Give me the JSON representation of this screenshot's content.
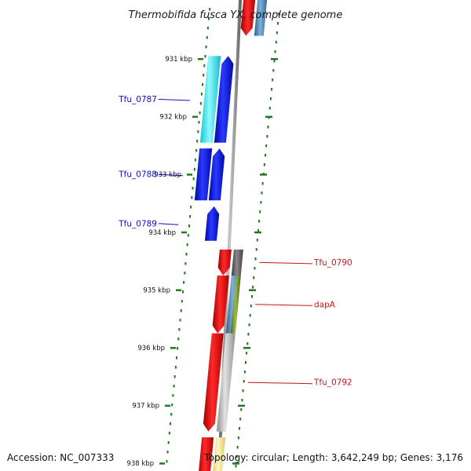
{
  "title": "Thermobifida fusca YX, complete genome",
  "footer": {
    "accession": "Accession: NC_007333",
    "topology": "Topology: circular; Length: 3,642,249 bp; Genes: 3,176"
  },
  "tick_unit": "kbp",
  "ticks": [
    931,
    932,
    933,
    934,
    935,
    936,
    937,
    938
  ],
  "colors": {
    "backbone": "#8c8c8c",
    "dots": "#1f7a1f",
    "minus_label": "#1010b8",
    "plus_label": "#c81414",
    "red": "#ee0000",
    "blue": "#0a14e6",
    "cyan": "#14e6f0",
    "steel": "#4682b4",
    "gray": "#b4b4b4",
    "darkgray": "#686868",
    "olive": "#6b8e23",
    "khaki": "#f0e68c"
  },
  "genes": [
    {
      "label": "Tfu_0787",
      "strand": "-",
      "start_kbp": 930.95,
      "end_kbp": 932.45,
      "lane": "minus1",
      "color": "blue"
    },
    {
      "label": "Tfu_0788",
      "strand": "-",
      "start_kbp": 932.55,
      "end_kbp": 933.45,
      "lane": "minus1",
      "color": "blue"
    },
    {
      "label": "Tfu_0789",
      "strand": "-",
      "start_kbp": 933.55,
      "end_kbp": 934.15,
      "lane": "minus1",
      "color": "blue"
    },
    {
      "label": "Tfu_0790",
      "strand": "+",
      "start_kbp": 934.3,
      "end_kbp": 934.75,
      "lane": "plus1",
      "color": "red"
    },
    {
      "label": "dapA",
      "strand": "+",
      "start_kbp": 934.75,
      "end_kbp": 935.75,
      "lane": "plus1",
      "color": "red"
    },
    {
      "label": "Tfu_0792",
      "strand": "+",
      "start_kbp": 935.75,
      "end_kbp": 937.45,
      "lane": "plus1",
      "color": "red"
    }
  ],
  "features": [
    {
      "lane": "minus2",
      "start_kbp": 930.95,
      "end_kbp": 932.45,
      "color": "cyan"
    },
    {
      "lane": "minus2",
      "start_kbp": 932.55,
      "end_kbp": 933.45,
      "color": "blue"
    },
    {
      "lane": "plus1",
      "start_kbp": 929.9,
      "end_kbp": 930.6,
      "color": "red",
      "arrow": true
    },
    {
      "lane": "plus1",
      "start_kbp": 937.55,
      "end_kbp": 938.3,
      "color": "red",
      "arrow": false
    },
    {
      "lane": "plus2",
      "start_kbp": 929.9,
      "end_kbp": 930.6,
      "color": "steel"
    },
    {
      "lane": "plus2",
      "start_kbp": 934.3,
      "end_kbp": 934.75,
      "color": "darkgray"
    },
    {
      "lane": "plus2",
      "start_kbp": 934.75,
      "end_kbp": 935.75,
      "color": "steel"
    },
    {
      "lane": "plus2",
      "start_kbp": 935.75,
      "end_kbp": 937.45,
      "color": "gray"
    },
    {
      "lane": "plus2",
      "start_kbp": 937.55,
      "end_kbp": 938.3,
      "color": "khaki"
    },
    {
      "lane": "plus3",
      "start_kbp": 934.75,
      "end_kbp": 935.75,
      "color": "olive"
    }
  ]
}
